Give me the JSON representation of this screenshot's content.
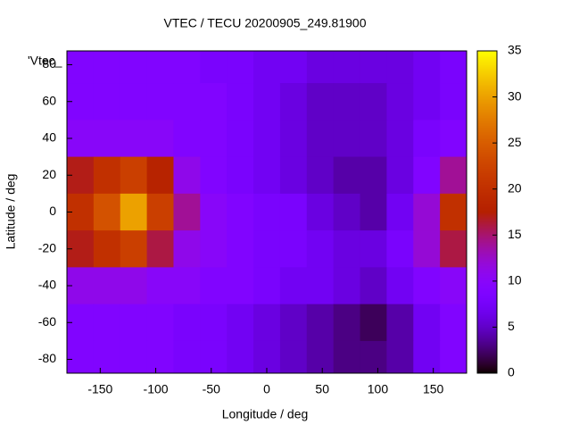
{
  "chart_data": {
    "type": "heatmap",
    "title": "VTEC / TECU 20200905_249.81900",
    "xlabel": "Longitude / deg",
    "ylabel": "Latitude / deg",
    "legend": "'Vtec_",
    "x": [
      -168,
      -144,
      -120,
      -96,
      -72,
      -48,
      -24,
      0,
      24,
      48,
      72,
      96,
      120,
      144,
      168
    ],
    "y": [
      80,
      60,
      40,
      20,
      0,
      -20,
      -40,
      -60,
      -80
    ],
    "z": [
      [
        9,
        9,
        9,
        9,
        9,
        8,
        8,
        7,
        7,
        6,
        6,
        6,
        6,
        7,
        8
      ],
      [
        9,
        9,
        9,
        9,
        9,
        9,
        8,
        7,
        6,
        5,
        5,
        5,
        6,
        7,
        8
      ],
      [
        10,
        10,
        10,
        10,
        9,
        9,
        8,
        7,
        6,
        5,
        5,
        5,
        6,
        8,
        9
      ],
      [
        17,
        20,
        22,
        18,
        11,
        9,
        8,
        7,
        6,
        5,
        4,
        4,
        6,
        9,
        14
      ],
      [
        20,
        24,
        30,
        22,
        14,
        10,
        9,
        8,
        8,
        6,
        5,
        4,
        7,
        12,
        20
      ],
      [
        17,
        20,
        22,
        16,
        11,
        10,
        9,
        8,
        8,
        7,
        6,
        6,
        8,
        12,
        16
      ],
      [
        11,
        11,
        11,
        10,
        10,
        9,
        9,
        8,
        7,
        7,
        6,
        5,
        7,
        9,
        10
      ],
      [
        9,
        9,
        9,
        9,
        8,
        8,
        7,
        6,
        5,
        4,
        3,
        2,
        4,
        7,
        9
      ],
      [
        9,
        9,
        9,
        9,
        8,
        8,
        7,
        6,
        5,
        4,
        3,
        3,
        4,
        7,
        9
      ]
    ],
    "xlim": [
      -180,
      180
    ],
    "ylim": [
      -87.5,
      87.5
    ],
    "xticks": [
      -150,
      -100,
      -50,
      0,
      50,
      100,
      150
    ],
    "yticks": [
      -80,
      -60,
      -40,
      -20,
      0,
      20,
      40,
      60,
      80
    ],
    "cblim": [
      0,
      35
    ],
    "cbticks": [
      0,
      5,
      10,
      15,
      20,
      25,
      30,
      35
    ],
    "palette": "gnuplot"
  }
}
